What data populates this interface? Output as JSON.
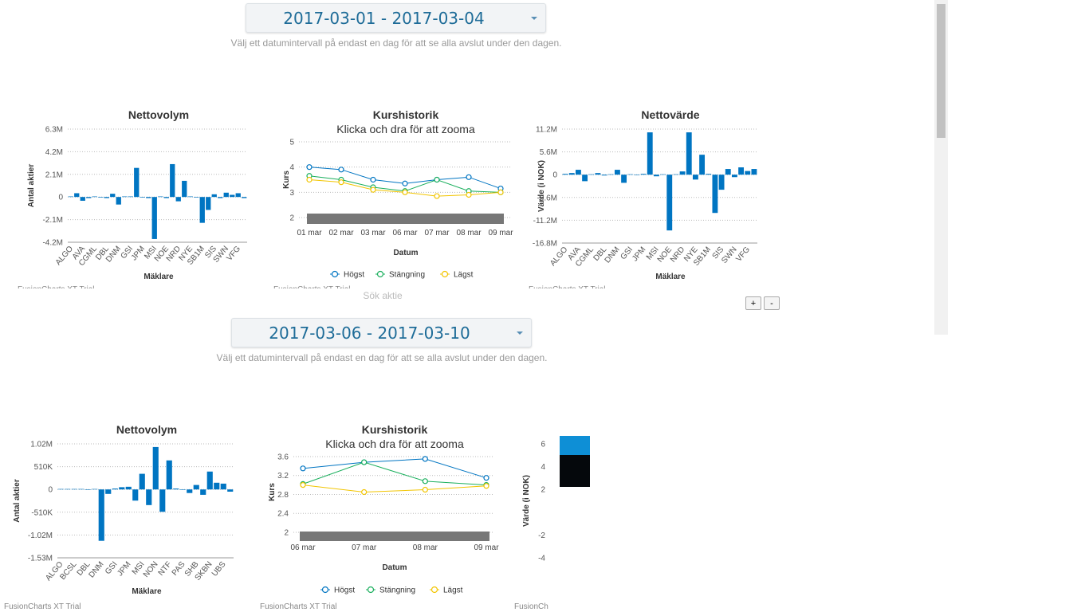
{
  "sections": [
    {
      "date_range": "2017-03-01 - 2017-03-04",
      "hint": "Välj ett datumintervall på endast en dag för att se alla avslut under den dagen."
    },
    {
      "date_range": "2017-03-06 - 2017-03-10",
      "hint": "Välj ett datumintervall på endast en dag för att se alla avslut under den dagen."
    }
  ],
  "search_label": "Sök aktie",
  "zoom_buttons": [
    "+",
    "-"
  ],
  "chart_data": [
    {
      "type": "bar",
      "title": "Nettovolym",
      "xlabel": "Mäklare",
      "ylabel": "Antal aktier",
      "color": "#0075c2",
      "grid": true,
      "watermark": "FusionCharts XT Trial",
      "categories": [
        "ALGO",
        null,
        "AVA",
        null,
        "CGML",
        null,
        "DBL",
        null,
        "DNM",
        null,
        "GSI",
        null,
        "JPM",
        null,
        "MSI",
        null,
        "NOE",
        null,
        "NRD",
        null,
        "NYE",
        null,
        "SB1M",
        null,
        "SIS",
        null,
        "SWN",
        null,
        "VFG",
        null
      ],
      "values": [
        50000,
        350000,
        -350000,
        -100000,
        50000,
        -50000,
        -100000,
        300000,
        -700000,
        50000,
        50000,
        2700000,
        -50000,
        -100000,
        -3900000,
        50000,
        -100000,
        3050000,
        -400000,
        1500000,
        50000,
        -50000,
        -2400000,
        -1200000,
        250000,
        -100000,
        400000,
        200000,
        350000,
        -100000
      ],
      "ylim": [
        -4200000,
        6300000
      ],
      "yticks": [
        {
          "value": 6300000,
          "label": "6.3M"
        },
        {
          "value": 4200000,
          "label": "4.2M"
        },
        {
          "value": 2100000,
          "label": "2.1M"
        },
        0,
        {
          "value": -2100000,
          "label": "-2.1M"
        },
        {
          "value": -4200000,
          "label": "-4.2M"
        }
      ]
    },
    {
      "type": "line",
      "title": "Kurshistorik",
      "subtitle": "Klicka och dra för att zooma",
      "xlabel": "Datum",
      "ylabel": "Kurs",
      "grid": true,
      "watermark": "FusionCharts XT Trial",
      "categories": [
        "01 mar",
        "02 mar",
        "03 mar",
        "06 mar",
        "07 mar",
        "08 mar",
        "09 mar"
      ],
      "series": [
        {
          "name": "Högst",
          "color": "#0075c2",
          "values": [
            4.0,
            3.9,
            3.5,
            3.35,
            3.5,
            3.6,
            3.15
          ]
        },
        {
          "name": "Stängning",
          "color": "#1aaf5d",
          "values": [
            3.65,
            3.5,
            3.2,
            3.05,
            3.5,
            3.05,
            3.0
          ]
        },
        {
          "name": "Lägst",
          "color": "#f2c500",
          "values": [
            3.5,
            3.4,
            3.1,
            3.0,
            2.85,
            2.9,
            3.0
          ]
        }
      ],
      "ylim": [
        2,
        5
      ],
      "yticks": [
        5,
        4,
        3,
        2
      ]
    },
    {
      "type": "bar",
      "title": "Nettovärde",
      "xlabel": "Mäklare",
      "ylabel": "Värde (i NOK)",
      "color": "#0075c2",
      "grid": true,
      "watermark": "FusionCharts XT Trial",
      "categories": [
        "ALGO",
        null,
        "AVA",
        null,
        "CGML",
        null,
        "DBL",
        null,
        "DNM",
        null,
        "GSI",
        null,
        "JPM",
        null,
        "MSI",
        null,
        "NOE",
        null,
        "NRD",
        null,
        "NYE",
        null,
        "SB1M",
        null,
        "SIS",
        null,
        "SWN",
        null,
        "VFG",
        null
      ],
      "values": [
        200000,
        400000,
        1200000,
        -1600000,
        100000,
        400000,
        -200000,
        100000,
        1200000,
        -2000000,
        100000,
        -100000,
        200000,
        10400000,
        -400000,
        100000,
        -13700000,
        100000,
        800000,
        10400000,
        -1200000,
        4900000,
        200000,
        -9400000,
        -3700000,
        1400000,
        -600000,
        1800000,
        900000,
        1400000
      ],
      "ylim": [
        -16800000,
        11200000
      ],
      "yticks": [
        {
          "value": 11200000,
          "label": "11.2M"
        },
        {
          "value": 5600000,
          "label": "5.6M"
        },
        0,
        {
          "value": -5600000,
          "label": "-5.6M"
        },
        {
          "value": -11200000,
          "label": "-11.2M"
        },
        {
          "value": -16800000,
          "label": "-16.8M"
        }
      ]
    },
    {
      "type": "bar",
      "title": "Nettovolym",
      "xlabel": "Mäklare",
      "ylabel": "Antal aktier",
      "color": "#0075c2",
      "grid": true,
      "watermark": "FusionCharts XT Trial",
      "categories": [
        "ALGO",
        null,
        "BCSL",
        null,
        "DBL",
        null,
        "DNM",
        null,
        "GSI",
        null,
        "JPM",
        null,
        "MSI",
        null,
        "NON",
        null,
        "NTF",
        null,
        "PAS",
        null,
        "SHB",
        null,
        "SKBN",
        null,
        "UBS",
        null
      ],
      "values": [
        10000,
        10000,
        10000,
        10000,
        -10000,
        10000,
        -1150000,
        -100000,
        20000,
        50000,
        60000,
        -250000,
        350000,
        -350000,
        950000,
        -500000,
        650000,
        20000,
        -10000,
        -80000,
        100000,
        -120000,
        400000,
        150000,
        130000,
        -50000
      ],
      "ylim": [
        -1530000,
        1020000
      ],
      "yticks": [
        {
          "value": 1020000,
          "label": "1.02M"
        },
        {
          "value": 510000,
          "label": "510K"
        },
        0,
        {
          "value": -510000,
          "label": "-510K"
        },
        {
          "value": -1020000,
          "label": "-1.02M"
        },
        {
          "value": -1530000,
          "label": "-1.53M"
        }
      ]
    },
    {
      "type": "line",
      "title": "Kurshistorik",
      "subtitle": "Klicka och dra för att zooma",
      "xlabel": "Datum",
      "ylabel": "Kurs",
      "grid": true,
      "watermark": "FusionCharts XT Trial",
      "categories": [
        "06 mar",
        "07 mar",
        "08 mar",
        "09 mar"
      ],
      "series": [
        {
          "name": "Högst",
          "color": "#0075c2",
          "values": [
            3.35,
            3.48,
            3.55,
            3.15
          ]
        },
        {
          "name": "Stängning",
          "color": "#1aaf5d",
          "values": [
            3.02,
            3.48,
            3.08,
            3.0
          ]
        },
        {
          "name": "Lägst",
          "color": "#f2c500",
          "values": [
            3.0,
            2.85,
            2.9,
            2.98
          ]
        }
      ],
      "ylim": [
        2,
        3.7
      ],
      "yticks": [
        3.6,
        3.2,
        2.8,
        2.4,
        2
      ]
    },
    {
      "type": "bar",
      "ylabel": "Värde (i NOK)",
      "grid": false,
      "watermark": "FusionCh",
      "categories": [],
      "values": [],
      "ylim": [
        -4,
        6
      ],
      "yticks": [
        6,
        4,
        2,
        -2,
        -4
      ]
    }
  ]
}
